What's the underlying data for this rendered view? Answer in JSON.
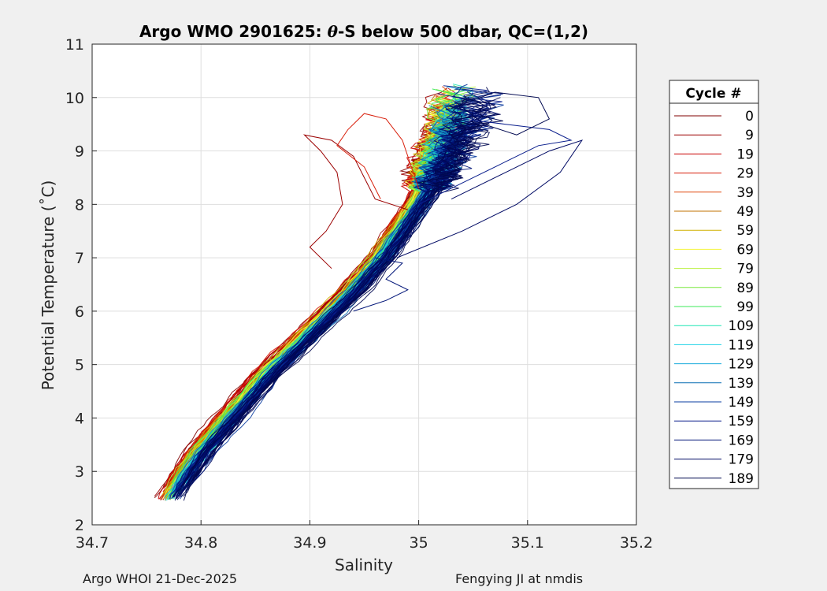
{
  "chart_data": {
    "type": "line",
    "title_parts": [
      "Argo WMO 2901625: ",
      "θ",
      "-S below 500 dbar,  QC=(1,2)"
    ],
    "xlabel": "Salinity",
    "ylabel": "Potential Temperature (˚C)",
    "xlim": [
      34.7,
      35.2
    ],
    "ylim": [
      2,
      11
    ],
    "xticks": [
      "34.7",
      "34.8",
      "34.9",
      "35",
      "35.1",
      "35.2"
    ],
    "yticks": [
      "2",
      "3",
      "4",
      "5",
      "6",
      "7",
      "8",
      "9",
      "10",
      "11"
    ],
    "grid": true,
    "legend": {
      "title": "Cycle #",
      "placement": "right-outside",
      "entries": [
        {
          "label": "0",
          "color": "#800000"
        },
        {
          "label": "9",
          "color": "#9b0000"
        },
        {
          "label": "19",
          "color": "#c80000"
        },
        {
          "label": "29",
          "color": "#d81e0a"
        },
        {
          "label": "39",
          "color": "#e04a10"
        },
        {
          "label": "49",
          "color": "#c07000"
        },
        {
          "label": "59",
          "color": "#d0b000"
        },
        {
          "label": "69",
          "color": "#f5f53c"
        },
        {
          "label": "79",
          "color": "#b8f03c"
        },
        {
          "label": "89",
          "color": "#78e83c"
        },
        {
          "label": "99",
          "color": "#3ce85a"
        },
        {
          "label": "109",
          "color": "#1ee6b4"
        },
        {
          "label": "119",
          "color": "#1ed2e6"
        },
        {
          "label": "129",
          "color": "#14aadc"
        },
        {
          "label": "139",
          "color": "#0a6eb4"
        },
        {
          "label": "149",
          "color": "#0a3ca0"
        },
        {
          "label": "159",
          "color": "#0a1e8c"
        },
        {
          "label": "169",
          "color": "#001478"
        },
        {
          "label": "179",
          "color": "#000a64"
        },
        {
          "label": "189",
          "color": "#000850"
        }
      ]
    },
    "series_envelope": {
      "description": "approximate theta-S envelope traced by the profiles",
      "center_path": [
        [
          34.77,
          2.5
        ],
        [
          34.78,
          2.8
        ],
        [
          34.8,
          3.4
        ],
        [
          34.83,
          4.1
        ],
        [
          34.86,
          4.8
        ],
        [
          34.89,
          5.4
        ],
        [
          34.915,
          5.9
        ],
        [
          34.94,
          6.4
        ],
        [
          34.965,
          7.0
        ],
        [
          34.985,
          7.6
        ],
        [
          35.005,
          8.2
        ],
        [
          35.015,
          8.7
        ],
        [
          35.022,
          9.2
        ],
        [
          35.028,
          9.6
        ],
        [
          35.03,
          9.9
        ]
      ]
    }
  },
  "footer": {
    "left": "Argo WHOI 21-Dec-2025",
    "right": "Fengying JI at nmdis"
  }
}
